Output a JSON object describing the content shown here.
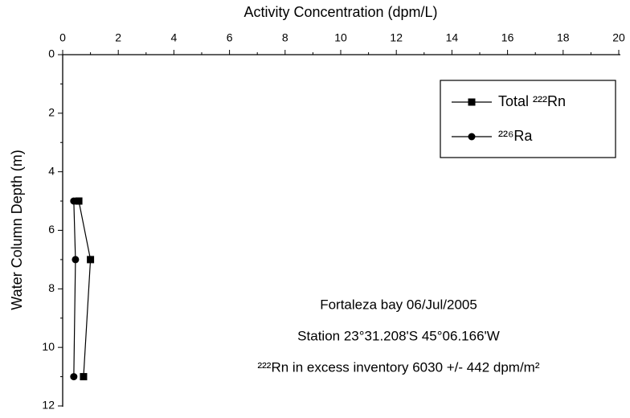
{
  "chart_data": {
    "type": "line",
    "x_label": "Activity Concentration (dpm/L)",
    "y_label": "Water Column Depth (m)",
    "y": [
      5,
      7,
      11
    ],
    "series": [
      {
        "name": "Total ²²²Rn",
        "color": "#000000",
        "marker": "square",
        "values": [
          0.58,
          1.0,
          0.75
        ]
      },
      {
        "name": "²²⁶Ra",
        "color": "#000000",
        "marker": "circle",
        "values": [
          0.4,
          0.46,
          0.4
        ]
      }
    ],
    "xlim": [
      0,
      20
    ],
    "xticks": [
      0,
      2,
      4,
      6,
      8,
      10,
      12,
      14,
      16,
      18,
      20
    ],
    "ylim": [
      0,
      12
    ],
    "yticks": [
      0,
      2,
      4,
      6,
      8,
      10,
      12
    ],
    "y_reversed": true,
    "x_axis_position": "top",
    "legend": "upper right",
    "annotations": [
      "Fortaleza bay 06/Jul/2005",
      "Station 23°31.208'S 45°06.166'W",
      "²²²Rn in excess inventory 6030 +/- 442 dpm/m²"
    ]
  }
}
